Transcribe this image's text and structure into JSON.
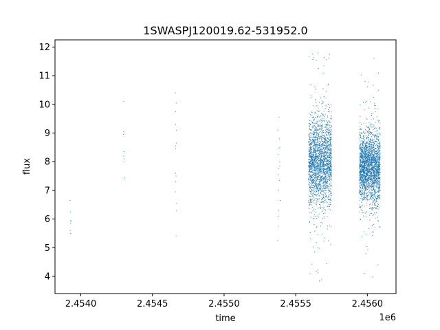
{
  "chart_data": {
    "type": "scatter",
    "title": "1SWASPJ120019.62-531952.0",
    "xlabel": "time",
    "ylabel": "flux",
    "x_offset_label": "1e6",
    "xlim": [
      2453820,
      2456200
    ],
    "ylim": [
      3.4,
      12.25
    ],
    "x_ticks": [
      2453950,
      2454200,
      2454450,
      2454700,
      2454950,
      2455200,
      2455450,
      2455700,
      2455950
    ],
    "x_tick_labels": [
      "",
      "",
      "",
      "",
      "",
      "",
      "",
      "",
      ""
    ],
    "x_tick_values": [
      2454000,
      2454500,
      2455000,
      2455500,
      2456000
    ],
    "x_tick_texts": [
      "2.4540",
      "2.4545",
      "2.4550",
      "2.4555",
      "2.4560"
    ],
    "y_tick_values": [
      4,
      5,
      6,
      7,
      8,
      9,
      10,
      11,
      12
    ],
    "y_tick_texts": [
      "4",
      "5",
      "6",
      "7",
      "8",
      "9",
      "10",
      "11",
      "12"
    ],
    "grid": false,
    "marker_color": "#1f77b4",
    "series": [
      {
        "clusters": [
          {
            "x_range": [
              2453924,
              2453932
            ],
            "y_values": [
              5.5,
              5.6,
              5.85,
              5.9,
              5.95,
              6.25,
              6.65
            ],
            "n": 7,
            "mode": "list"
          },
          {
            "x_range": [
              2454298,
              2454304
            ],
            "y_values": [
              7.4,
              7.45,
              8.0,
              8.1,
              8.2,
              8.35,
              8.95,
              9.0,
              9.05,
              10.1
            ],
            "n": 10,
            "mode": "list"
          },
          {
            "x_range": [
              2454659,
              2454667
            ],
            "y_values": [
              5.4,
              6.3,
              6.55,
              6.95,
              7.3,
              7.5,
              7.6,
              8.45,
              8.55,
              8.65,
              9.1,
              9.3,
              9.75,
              10.05,
              10.4
            ],
            "n": 15,
            "mode": "list"
          },
          {
            "x_range": [
              2455372,
              2455392
            ],
            "y_values": [
              5.25,
              5.75,
              6.1,
              6.3,
              6.65,
              7.0,
              7.35,
              7.55,
              7.75,
              7.85,
              8.0,
              8.25,
              8.45,
              8.5,
              8.8,
              9.1,
              9.55
            ],
            "n": 17,
            "mode": "list"
          },
          {
            "x_range": [
              2455590,
              2455750
            ],
            "center": 8.0,
            "spread": 0.75,
            "min": 3.8,
            "max": 11.8,
            "n": 2200,
            "mode": "dense"
          },
          {
            "x_range": [
              2455945,
              2456090
            ],
            "center": 7.8,
            "spread": 0.6,
            "min": 3.85,
            "max": 11.8,
            "n": 2400,
            "mode": "dense"
          }
        ]
      }
    ]
  }
}
